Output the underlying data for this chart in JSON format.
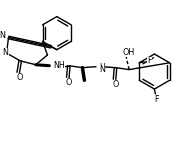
{
  "bg": "#ffffff",
  "lc": "#000000",
  "lw": 1.0,
  "fs": 5.8,
  "figsize": [
    1.95,
    1.46
  ],
  "dpi": 100,
  "xlim": [
    2,
    197
  ],
  "ylim": [
    2,
    148
  ]
}
